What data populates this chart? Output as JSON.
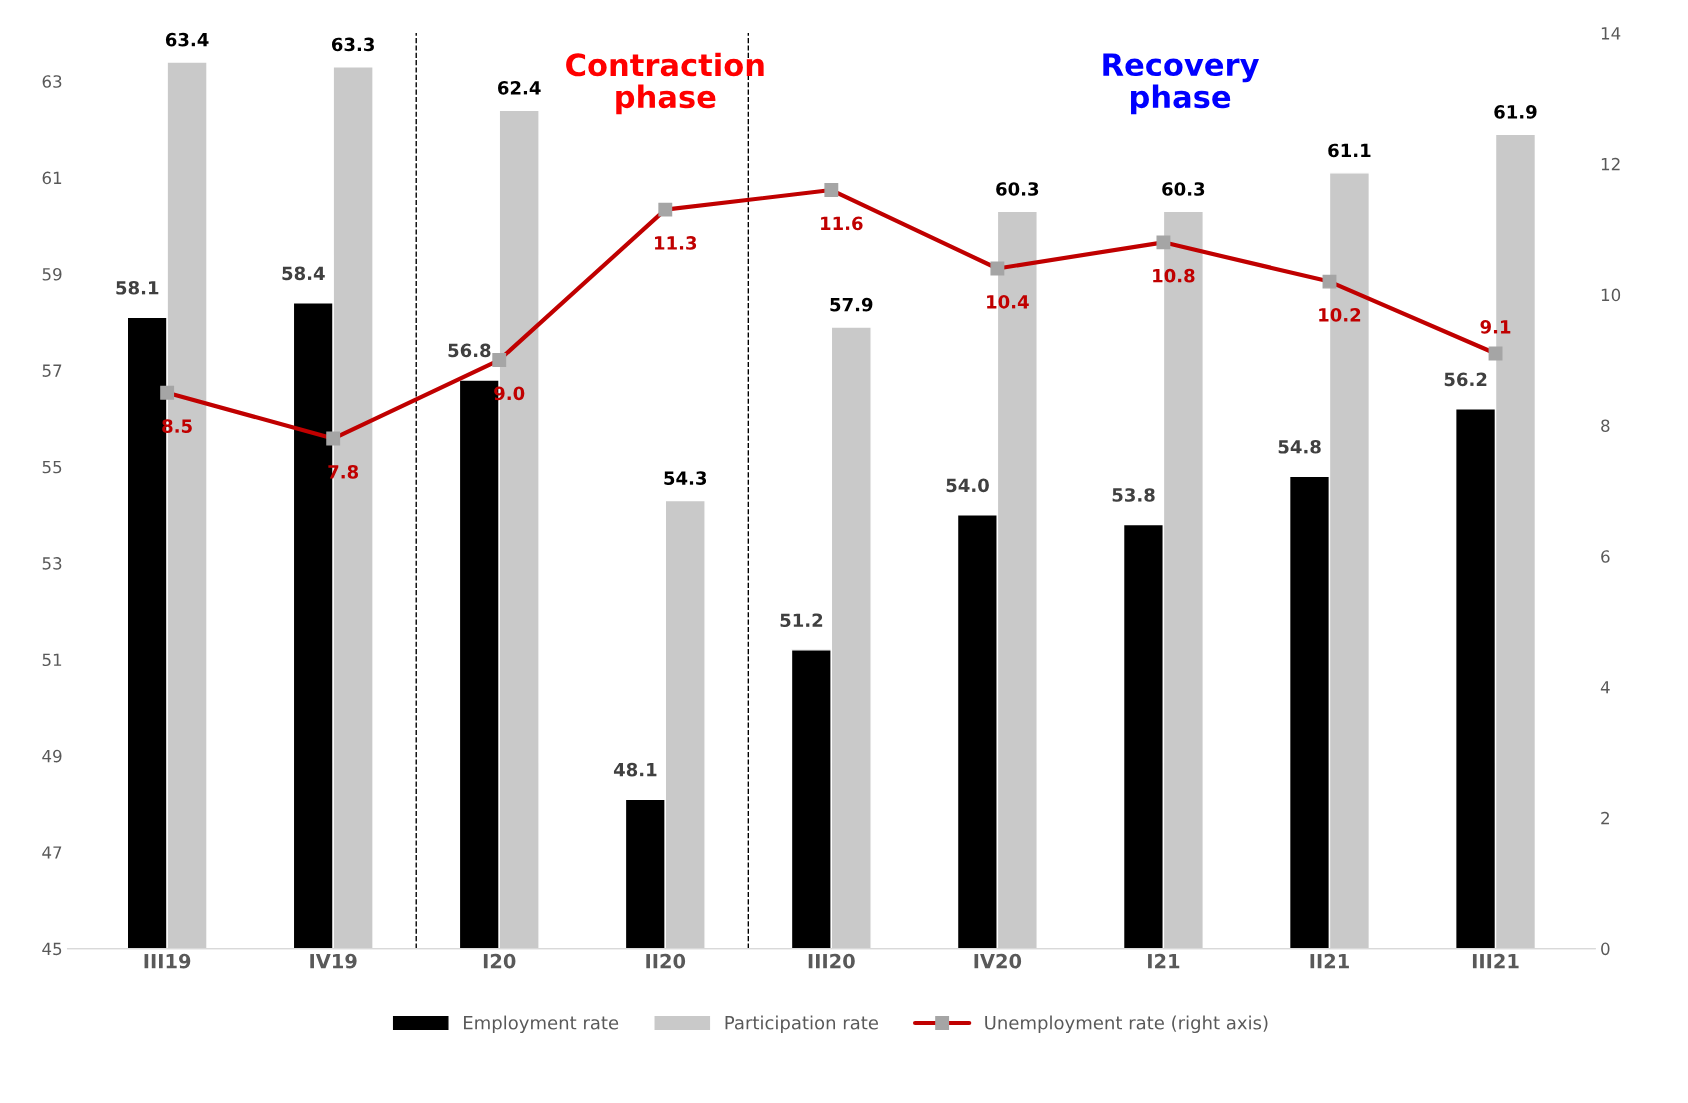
{
  "chart_data": {
    "type": "bar",
    "categories": [
      "III19",
      "IV19",
      "I20",
      "II20",
      "III20",
      "IV20",
      "I21",
      "II21",
      "III21"
    ],
    "series": [
      {
        "name": "Employment rate",
        "color": "#000000",
        "values": [
          58.1,
          58.4,
          56.8,
          48.1,
          51.2,
          54.0,
          53.8,
          54.8,
          56.2
        ],
        "value_labels": [
          "58.1",
          "58.4",
          "56.8",
          "48.1",
          "51.2",
          "54.0",
          "53.8",
          "54.8",
          "56.2"
        ]
      },
      {
        "name": "Participation rate",
        "color": "#c9c9c9",
        "values": [
          63.4,
          63.3,
          62.4,
          54.3,
          57.9,
          60.3,
          60.3,
          61.1,
          61.9
        ]
      },
      {
        "name": "Unemployment rate (right axis)",
        "type": "line",
        "axis": "y2",
        "color": "#c00000",
        "marker": "square",
        "values": [
          8.5,
          7.8,
          9.0,
          11.3,
          11.6,
          10.4,
          10.8,
          10.2,
          9.1
        ],
        "value_labels": [
          "8.5",
          "7.8",
          "9.0",
          "11.3",
          "11.6",
          "10.4",
          "10.8",
          "10.2",
          "9.1"
        ]
      }
    ],
    "ylim": [
      45,
      64
    ],
    "yticks": [
      45,
      47,
      49,
      51,
      53,
      55,
      57,
      59,
      61,
      63
    ],
    "y2lim": [
      0,
      14
    ],
    "y2ticks": [
      0,
      2,
      4,
      6,
      8,
      10,
      12,
      14
    ],
    "annotations": [
      "Contraction\nphase",
      "Recovery\nphase"
    ],
    "data_labels": true,
    "legend": "bottom",
    "grid": false
  }
}
